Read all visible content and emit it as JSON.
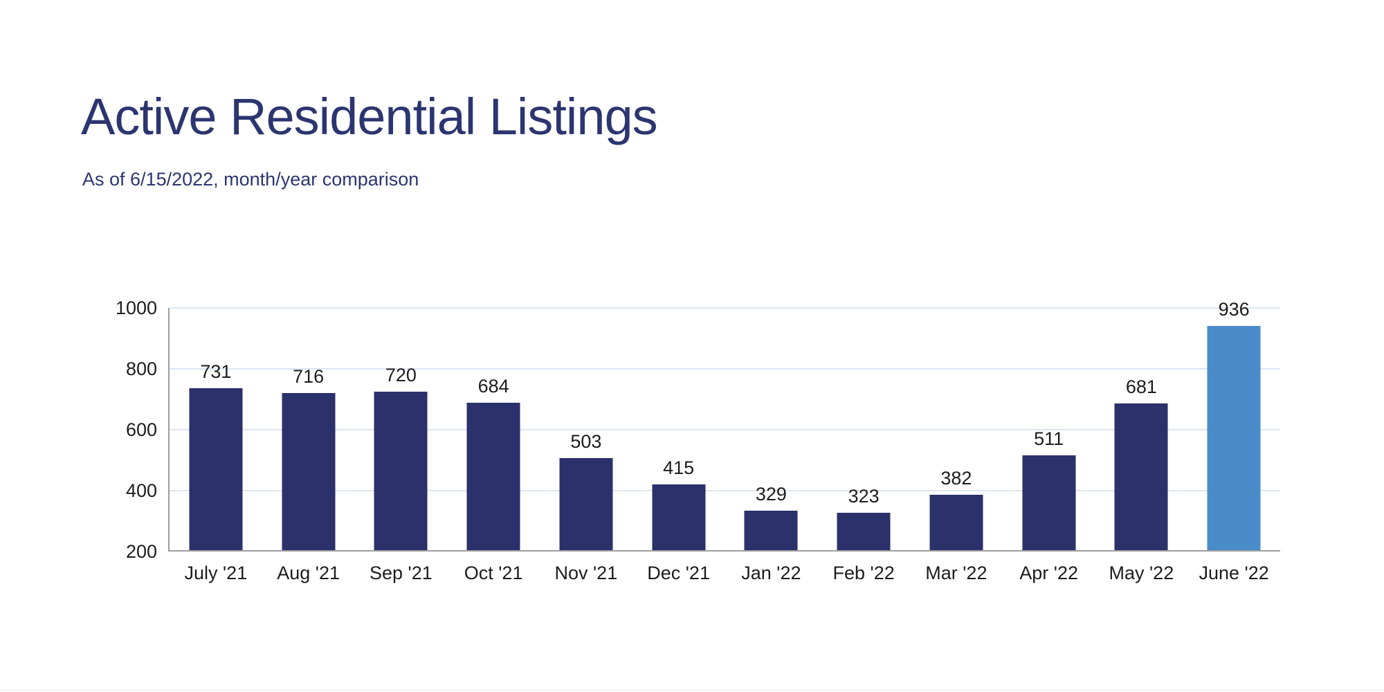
{
  "page": {
    "title": "Active Residential Listings",
    "subtitle": "As of 6/15/2022, month/year comparison"
  },
  "colors": {
    "title_text": "#2b3570",
    "subtitle_text": "#2b3570",
    "bar": "#2a316b",
    "bar_highlight": "#4a8cca",
    "gridline": "#dde5f1",
    "axis_line": "#9e9e9e",
    "label_text": "#1c1c1c"
  },
  "chart_data": {
    "type": "bar",
    "title": "Active Residential Listings",
    "subtitle": "As of 6/15/2022, month/year comparison",
    "categories": [
      "July '21",
      "Aug '21",
      "Sep '21",
      "Oct '21",
      "Nov '21",
      "Dec '21",
      "Jan '22",
      "Feb '22",
      "Mar '22",
      "Apr '22",
      "May '22",
      "June '22"
    ],
    "values": [
      731,
      716,
      720,
      684,
      503,
      415,
      329,
      323,
      382,
      511,
      681,
      936
    ],
    "highlight_index": 11,
    "highlight_category": "June '22",
    "xlabel": "",
    "ylabel": "",
    "ylim": [
      200,
      1000
    ],
    "yticks": [
      200,
      400,
      600,
      800,
      1000
    ],
    "grid": true,
    "legend": false,
    "data_labels": true
  }
}
